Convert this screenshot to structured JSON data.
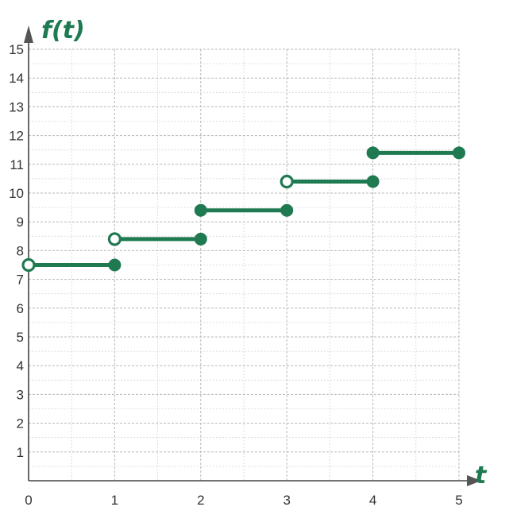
{
  "chart_data": {
    "type": "line",
    "xlabel": "t",
    "ylabel": "f(t)",
    "xlim": [
      0,
      5
    ],
    "ylim": [
      0,
      15
    ],
    "x_ticks": [
      0,
      1,
      2,
      3,
      4,
      5
    ],
    "y_ticks": [
      1,
      2,
      3,
      4,
      5,
      6,
      7,
      8,
      9,
      10,
      11,
      12,
      13,
      14,
      15
    ],
    "grid": true,
    "color": "#1f7a52",
    "segments": [
      {
        "x": [
          0,
          1
        ],
        "y": [
          7.5,
          7.5
        ],
        "start_closed": false,
        "end_closed": true
      },
      {
        "x": [
          1,
          2
        ],
        "y": [
          8.4,
          8.4
        ],
        "start_closed": false,
        "end_closed": true
      },
      {
        "x": [
          2,
          3
        ],
        "y": [
          9.4,
          9.4
        ],
        "start_closed": true,
        "end_closed": true
      },
      {
        "x": [
          3,
          4
        ],
        "y": [
          10.4,
          10.4
        ],
        "start_closed": false,
        "end_closed": true
      },
      {
        "x": [
          4,
          5
        ],
        "y": [
          11.4,
          11.4
        ],
        "start_closed": true,
        "end_closed": true
      }
    ]
  }
}
